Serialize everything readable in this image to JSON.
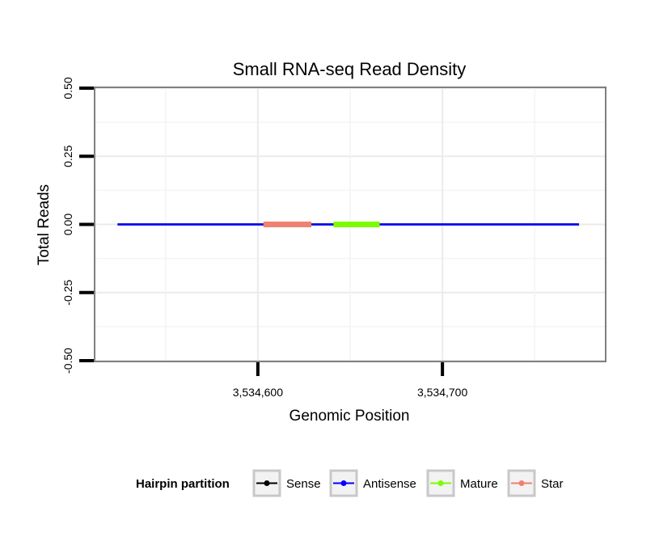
{
  "chart_data": {
    "type": "line",
    "title": "Small RNA-seq Read Density",
    "xlabel": "Genomic Position",
    "ylabel": "Total Reads",
    "xlim": [
      3534512,
      3534788
    ],
    "ylim": [
      -0.5,
      0.5
    ],
    "x_ticks": [
      3534600,
      3534700
    ],
    "x_tick_labels": [
      "3,534,600",
      "3,534,700"
    ],
    "y_ticks": [
      -0.5,
      -0.25,
      0,
      0.25,
      0.5
    ],
    "y_tick_labels": [
      "-0.50",
      "-0.25",
      "0.00",
      "0.25",
      "0.50"
    ],
    "grid": true,
    "series": [
      {
        "name": "Sense",
        "color": "#000000",
        "x": [
          3534524,
          3534774
        ],
        "y": [
          0,
          0
        ]
      },
      {
        "name": "Antisense",
        "color": "#0000ff",
        "x": [
          3534524,
          3534774
        ],
        "y": [
          0,
          0
        ]
      },
      {
        "name": "Star",
        "color": "#f08070",
        "x": [
          3534603,
          3534629
        ],
        "y": [
          0,
          0
        ]
      },
      {
        "name": "Mature",
        "color": "#7cfc00",
        "x": [
          3534641,
          3534666
        ],
        "y": [
          0,
          0
        ]
      }
    ],
    "legend": {
      "title": "Hairpin partition",
      "position": "bottom",
      "entries": [
        {
          "label": "Sense",
          "color": "#000000"
        },
        {
          "label": "Antisense",
          "color": "#0000ff"
        },
        {
          "label": "Mature",
          "color": "#7cfc00"
        },
        {
          "label": "Star",
          "color": "#f08070"
        }
      ]
    }
  }
}
